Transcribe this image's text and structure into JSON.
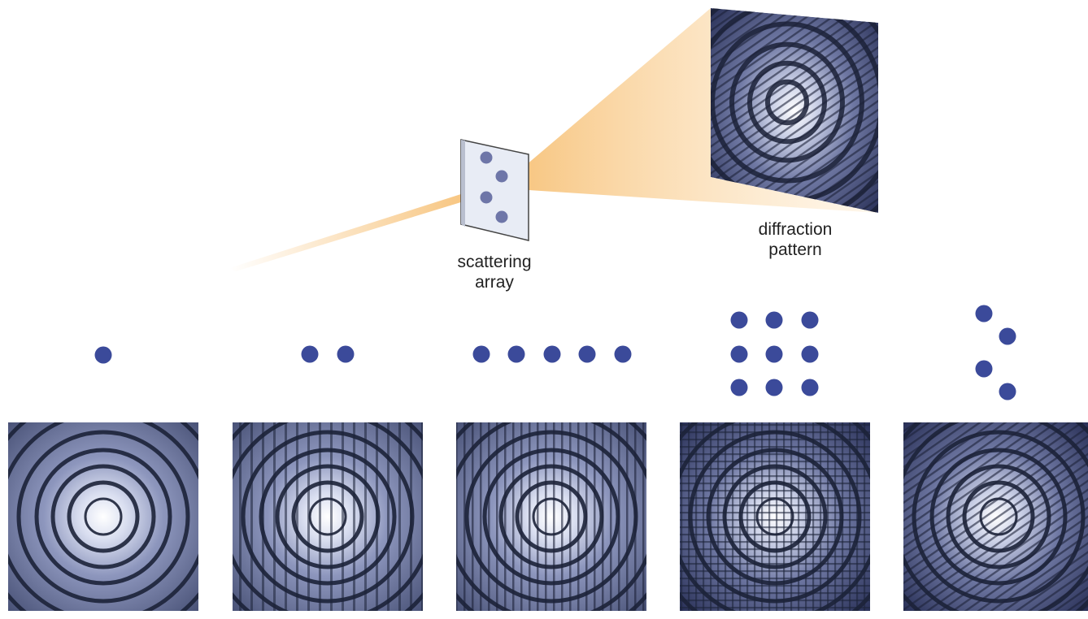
{
  "labels": {
    "scattering_array": [
      "scattering",
      "array"
    ],
    "diffraction_pattern": [
      "diffraction",
      "pattern"
    ]
  },
  "colors": {
    "dot": "#3b4a9a",
    "screen_dot": "#6e76a8",
    "beam": "#f5b45a",
    "pattern_light": "#ffffff",
    "pattern_mid": "#9aa3c8",
    "pattern_dark": "#1c2238"
  },
  "arrays": [
    {
      "name": "single-atom",
      "dots": 1,
      "stripe": "none"
    },
    {
      "name": "two-atoms",
      "dots": 2,
      "stripe": "vertical-wide"
    },
    {
      "name": "five-atom-row",
      "dots": 5,
      "stripe": "vertical-fine"
    },
    {
      "name": "three-by-three-grid",
      "dots": 9,
      "stripe": "grid"
    },
    {
      "name": "four-atom-array",
      "dots": 4,
      "stripe": "diagonal"
    }
  ]
}
